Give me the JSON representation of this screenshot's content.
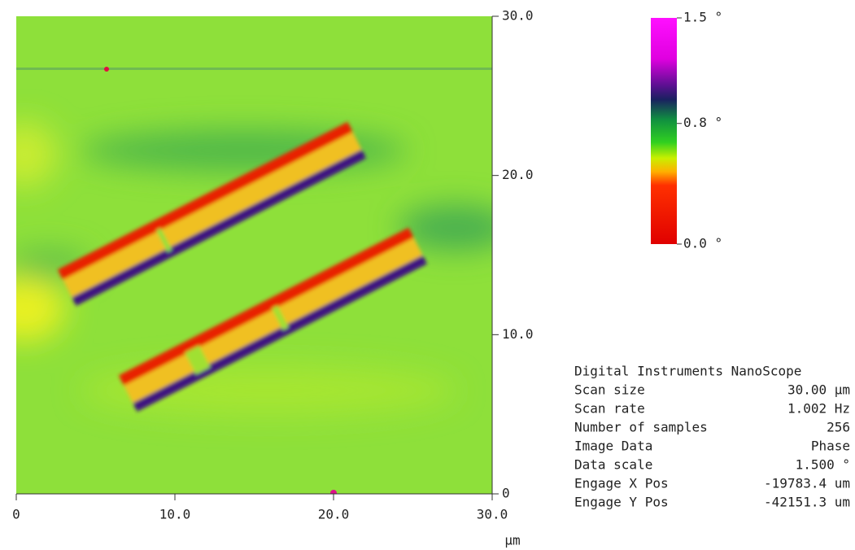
{
  "chart_data": {
    "type": "image",
    "x_label": "µm",
    "xlim": [
      0,
      30
    ],
    "xticks": [
      0,
      {
        "value": 10,
        "label": "10.0"
      },
      {
        "value": 20,
        "label": "20.0"
      },
      {
        "value": 30,
        "label": "30.0"
      }
    ],
    "ylim": [
      0,
      30
    ],
    "yticks": [
      0,
      {
        "value": 10,
        "label": "10.0"
      },
      {
        "value": 20,
        "label": "20.0"
      },
      {
        "value": 30,
        "label": "30.0"
      }
    ],
    "clim": [
      0,
      1.5
    ],
    "cticks": [
      {
        "value": 1.5,
        "label": "1.5 °"
      },
      {
        "value": 0.8,
        "label": "0.8 °"
      },
      {
        "value": 0.0,
        "label": "0.0 °"
      }
    ]
  },
  "info": {
    "title": "Digital Instruments NanoScope",
    "rows": [
      [
        "Scan size",
        "30.00 µm"
      ],
      [
        "Scan rate",
        "1.002 Hz"
      ],
      [
        "Number of samples",
        "256"
      ],
      [
        "Image Data",
        "Phase"
      ],
      [
        "Data scale",
        "1.500 °"
      ],
      [
        "Engage X Pos",
        "-19783.4 um"
      ],
      [
        "Engage Y Pos",
        "-42151.3 um"
      ]
    ]
  }
}
